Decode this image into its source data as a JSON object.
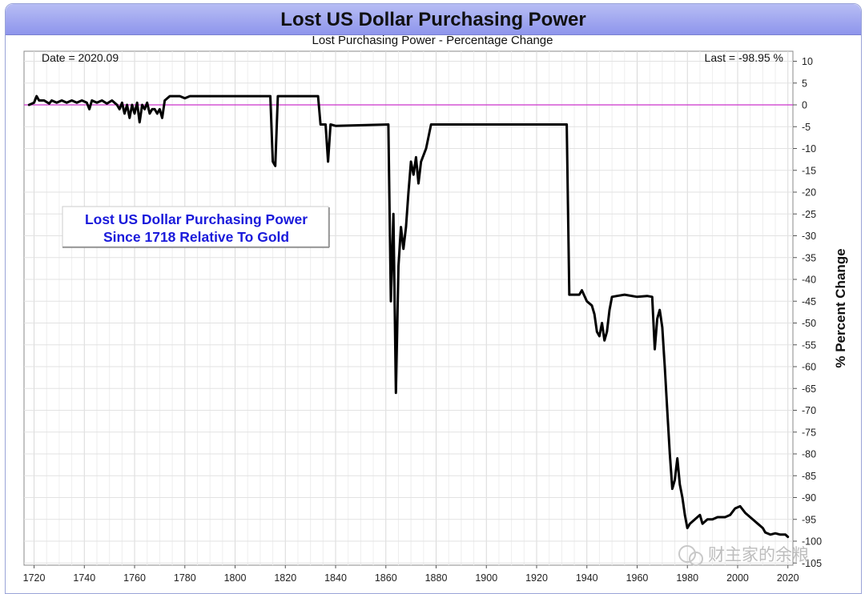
{
  "chart_data": {
    "type": "line",
    "title": "Lost US Dollar Purchasing Power",
    "subtitle": "Lost Purchasing Power - Percentage Change",
    "ylabel": "% Percent Change",
    "xlim": [
      1716,
      2022
    ],
    "ylim": [
      -100,
      12
    ],
    "x_ticks": [
      1720,
      1740,
      1760,
      1780,
      1800,
      1820,
      1840,
      1860,
      1880,
      1900,
      1920,
      1940,
      1960,
      1980,
      2000,
      2020
    ],
    "y_ticks": [
      10,
      5,
      0,
      -5,
      -10,
      -15,
      -20,
      -25,
      -30,
      -35,
      -40,
      -45,
      -50,
      -55,
      -60,
      -65,
      -70,
      -75,
      -80,
      -85,
      -90,
      -95,
      -100,
      -105
    ],
    "reference_line": {
      "y": 0,
      "color": "#cc33cc"
    },
    "grid": true,
    "date_label": "Date = 2020.09",
    "last_label": "Last = -98.95 %",
    "annotation": [
      "Lost US Dollar Purchasing Power",
      "Since 1718 Relative To Gold"
    ],
    "series": [
      {
        "color": "#000000",
        "points": [
          [
            1718,
            0
          ],
          [
            1720,
            0.5
          ],
          [
            1721,
            2
          ],
          [
            1722,
            1
          ],
          [
            1724,
            1
          ],
          [
            1726,
            0.3
          ],
          [
            1727,
            1
          ],
          [
            1729,
            0.5
          ],
          [
            1731,
            1
          ],
          [
            1733,
            0.5
          ],
          [
            1735,
            1
          ],
          [
            1737,
            0.5
          ],
          [
            1739,
            1
          ],
          [
            1741,
            0.5
          ],
          [
            1742,
            -1
          ],
          [
            1743,
            1
          ],
          [
            1745,
            0.5
          ],
          [
            1747,
            1
          ],
          [
            1749,
            0.3
          ],
          [
            1751,
            1
          ],
          [
            1753,
            0
          ],
          [
            1754,
            -1
          ],
          [
            1755,
            0.5
          ],
          [
            1756,
            -2
          ],
          [
            1757,
            0
          ],
          [
            1758,
            -3
          ],
          [
            1759,
            0
          ],
          [
            1760,
            -2
          ],
          [
            1761,
            0.5
          ],
          [
            1762,
            -4
          ],
          [
            1763,
            0
          ],
          [
            1764,
            -1
          ],
          [
            1765,
            0.5
          ],
          [
            1766,
            -2
          ],
          [
            1767,
            -1
          ],
          [
            1768,
            -1
          ],
          [
            1769,
            -2
          ],
          [
            1770,
            -1
          ],
          [
            1771,
            -3
          ],
          [
            1772,
            1
          ],
          [
            1774,
            2
          ],
          [
            1778,
            2
          ],
          [
            1780,
            1.5
          ],
          [
            1782,
            2
          ],
          [
            1814,
            2
          ],
          [
            1815,
            -13
          ],
          [
            1816,
            -14
          ],
          [
            1817,
            2
          ],
          [
            1833,
            2
          ],
          [
            1834,
            -4.5
          ],
          [
            1836,
            -4.5
          ],
          [
            1837,
            -13
          ],
          [
            1838,
            -4.5
          ],
          [
            1840,
            -4.8
          ],
          [
            1861,
            -4.5
          ],
          [
            1862,
            -45
          ],
          [
            1863,
            -25
          ],
          [
            1864,
            -66
          ],
          [
            1865,
            -37
          ],
          [
            1866,
            -28
          ],
          [
            1867,
            -33
          ],
          [
            1868,
            -28
          ],
          [
            1869,
            -20
          ],
          [
            1870,
            -13
          ],
          [
            1871,
            -16
          ],
          [
            1872,
            -12
          ],
          [
            1873,
            -18
          ],
          [
            1874,
            -13
          ],
          [
            1876,
            -10
          ],
          [
            1878,
            -4.5
          ],
          [
            1880,
            -4.5
          ],
          [
            1932,
            -4.5
          ],
          [
            1933,
            -43.5
          ],
          [
            1937,
            -43.5
          ],
          [
            1938,
            -42.5
          ],
          [
            1940,
            -45
          ],
          [
            1942,
            -46
          ],
          [
            1943,
            -48
          ],
          [
            1944,
            -52
          ],
          [
            1945,
            -53
          ],
          [
            1946,
            -50
          ],
          [
            1947,
            -54
          ],
          [
            1948,
            -52
          ],
          [
            1949,
            -47
          ],
          [
            1950,
            -44
          ],
          [
            1952,
            -43.8
          ],
          [
            1955,
            -43.5
          ],
          [
            1960,
            -44
          ],
          [
            1964,
            -43.8
          ],
          [
            1966,
            -44
          ],
          [
            1967,
            -56
          ],
          [
            1968,
            -49
          ],
          [
            1969,
            -47
          ],
          [
            1970,
            -51
          ],
          [
            1971,
            -60
          ],
          [
            1972,
            -70
          ],
          [
            1973,
            -80
          ],
          [
            1974,
            -88
          ],
          [
            1975,
            -86
          ],
          [
            1976,
            -81
          ],
          [
            1977,
            -87
          ],
          [
            1978,
            -90
          ],
          [
            1979,
            -94
          ],
          [
            1980,
            -97
          ],
          [
            1981,
            -96
          ],
          [
            1983,
            -95
          ],
          [
            1985,
            -94
          ],
          [
            1986,
            -96
          ],
          [
            1988,
            -95
          ],
          [
            1990,
            -95
          ],
          [
            1992,
            -94.5
          ],
          [
            1995,
            -94.5
          ],
          [
            1997,
            -94
          ],
          [
            1999,
            -92.5
          ],
          [
            2001,
            -92
          ],
          [
            2003,
            -93.5
          ],
          [
            2006,
            -95
          ],
          [
            2008,
            -96
          ],
          [
            2010,
            -97
          ],
          [
            2011,
            -98
          ],
          [
            2013,
            -98.5
          ],
          [
            2015,
            -98.2
          ],
          [
            2017,
            -98.5
          ],
          [
            2019,
            -98.5
          ],
          [
            2020,
            -99
          ]
        ]
      }
    ]
  },
  "watermark": {
    "text": "财主家的余粮",
    "icon": "wechat-icon"
  }
}
